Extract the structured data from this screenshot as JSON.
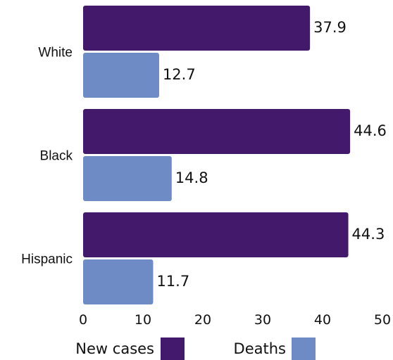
{
  "chart_data": {
    "type": "bar",
    "orientation": "horizontal",
    "categories": [
      "White",
      "Black",
      "Hispanic"
    ],
    "series": [
      {
        "name": "New cases",
        "values": [
          37.9,
          44.6,
          44.3
        ],
        "color": "#431a6b"
      },
      {
        "name": "Deaths",
        "values": [
          12.7,
          14.8,
          11.7
        ],
        "color": "#6e8bc6"
      }
    ],
    "xlim": [
      0,
      50
    ],
    "xticks": [
      "0",
      "10",
      "20",
      "30",
      "40",
      "50"
    ],
    "grid": false,
    "legend": "bottom"
  }
}
